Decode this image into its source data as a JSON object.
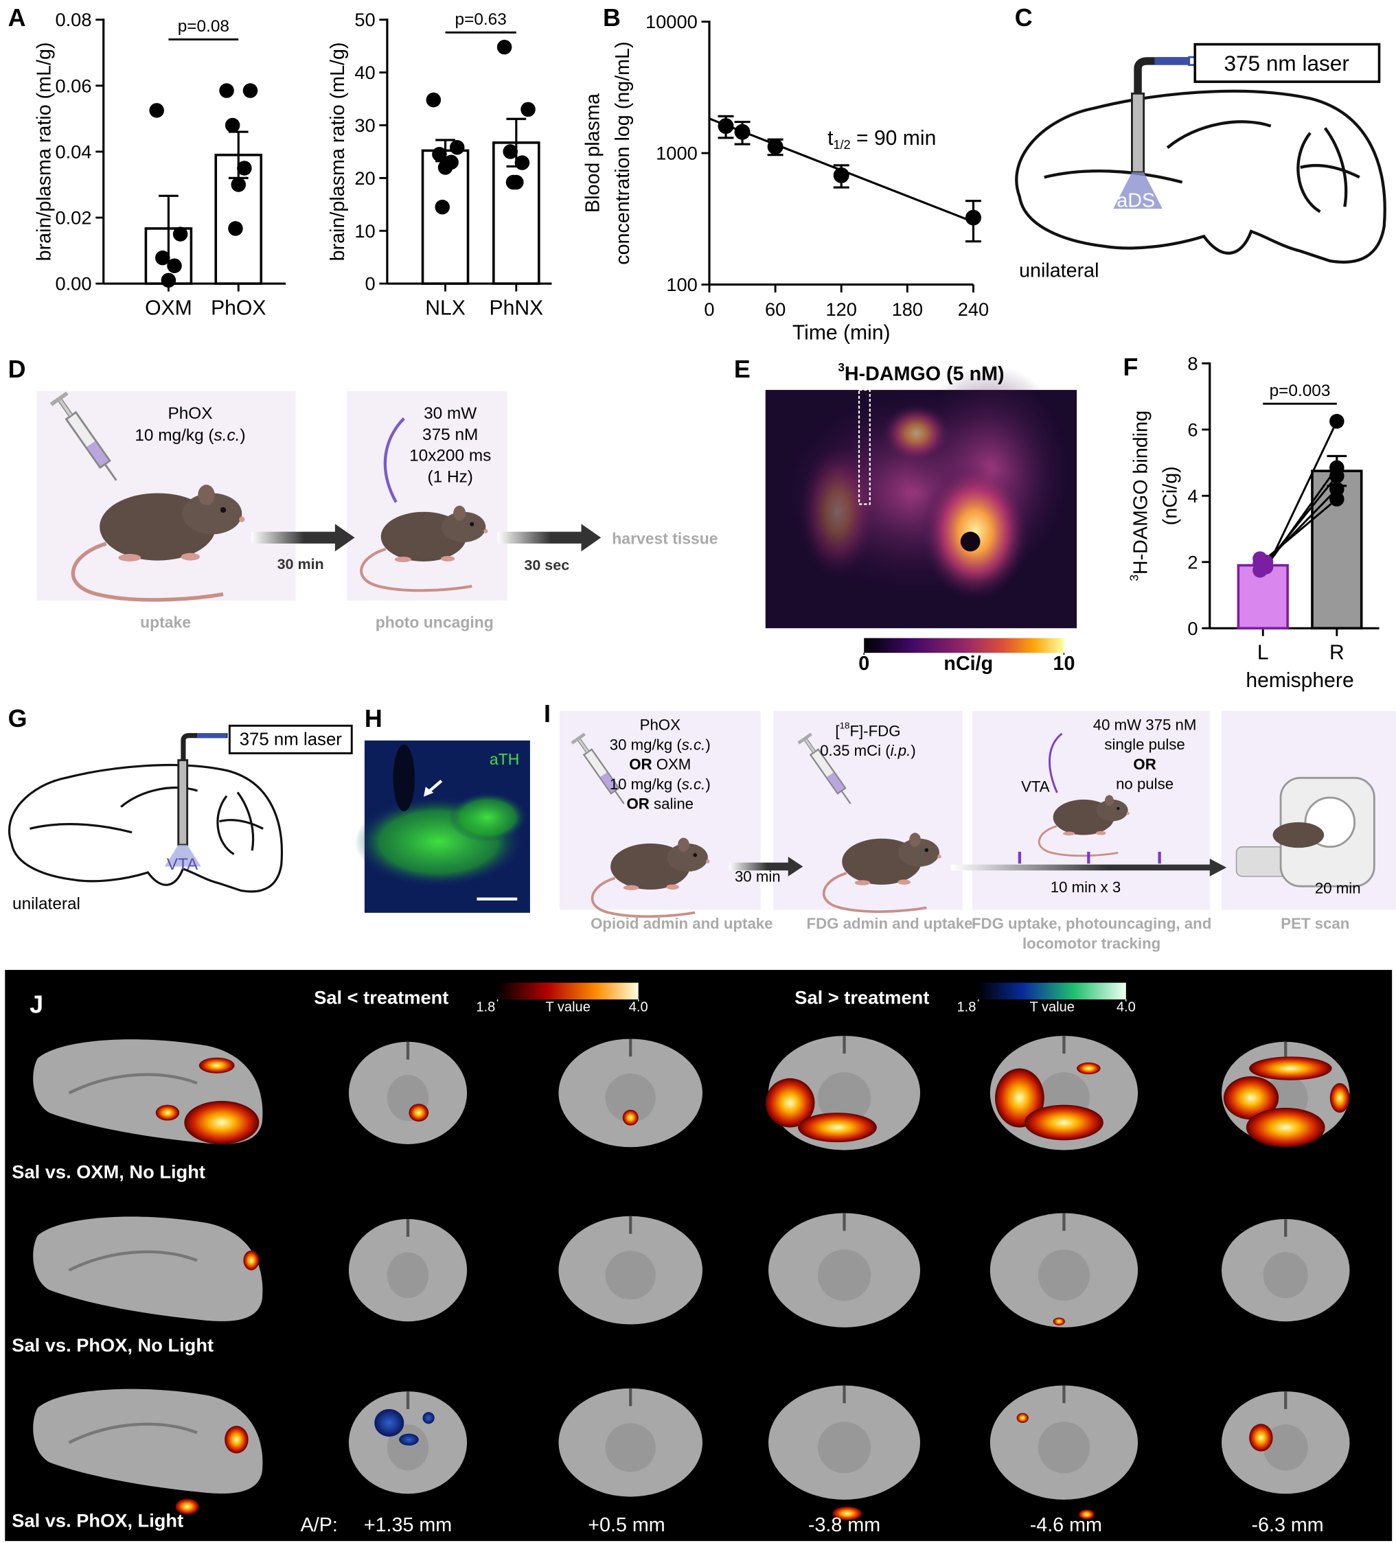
{
  "figure": {
    "panel_labels": [
      "A",
      "B",
      "C",
      "D",
      "E",
      "F",
      "G",
      "H",
      "I",
      "J"
    ]
  },
  "panel_c": {
    "laser": "375 nm laser",
    "region": "aDS",
    "side": "unilateral"
  },
  "panel_d": {
    "dose": [
      "PhOX",
      [
        "10 mg/kg (",
        {
          "text": "s.c.",
          "style": "italic"
        },
        ")"
      ]
    ],
    "light": [
      "30 mW",
      "375 nM",
      "10x200 ms",
      "(1 Hz)"
    ],
    "delay1": "30 min",
    "delay2": "30 sec",
    "end": "harvest tissue",
    "steps": [
      "uptake",
      "photo uncaging"
    ]
  },
  "panel_e": {
    "title": [
      {
        "text": "3",
        "style": "sup"
      },
      "H-DAMGO (5 nM)"
    ],
    "colorbar": {
      "ticks": [
        0,
        10
      ],
      "label": "nCi/g"
    }
  },
  "panel_g": {
    "laser": "375 nm laser",
    "region": "VTA",
    "side": "unilateral"
  },
  "panel_h": {
    "stain": "aTH"
  },
  "panel_i": {
    "steps": [
      {
        "lines": [
          "PhOX",
          [
            "30 mg/kg (",
            {
              "text": "s.c.",
              "style": "italic"
            },
            ")"
          ],
          [
            {
              "text": "OR",
              "style": "bold"
            },
            " OXM"
          ],
          [
            "10 mg/kg (",
            {
              "text": "s.c.",
              "style": "italic"
            },
            ")"
          ],
          [
            {
              "text": "OR",
              "style": "bold"
            },
            " saline"
          ]
        ],
        "caption": [
          "Opioid admin and uptake"
        ]
      },
      {
        "lines": [
          [
            "[",
            {
              "text": "18",
              "style": "sup"
            },
            "F]-FDG"
          ],
          [
            "0.35 mCi (",
            {
              "text": "i.p.",
              "style": "italic"
            },
            ")"
          ]
        ],
        "caption": [
          "FDG admin and uptake"
        ]
      },
      {
        "lines": [
          "40 mW 375 nM",
          "single pulse",
          [
            {
              "text": "OR",
              "style": "bold"
            }
          ],
          "no pulse"
        ],
        "caption": [
          "FDG uptake, photouncaging, and",
          "locomotor tracking"
        ]
      },
      {
        "lines": [],
        "caption": [
          "PET scan"
        ]
      }
    ],
    "delay": "30 min",
    "region": "VTA",
    "interval": "10 min x 3",
    "scan": "20 min"
  },
  "panel_j": {
    "increase": {
      "title": "Sal < treatment",
      "colorbar": {
        "ticks": [
          1.8,
          {
            "value": 4,
            "label": "4.0"
          }
        ],
        "label": "T value"
      }
    },
    "decrease": {
      "title": "Sal > treatment",
      "colorbar": {
        "ticks": [
          1.8,
          {
            "value": 4,
            "label": "4.0"
          }
        ],
        "label": "T value"
      }
    },
    "rows": [
      "Sal vs. OXM, No Light",
      "Sal vs. PhOX, No Light",
      "Sal vs. PhOX, Light"
    ],
    "ap_label": "A/P:",
    "ap": [
      "+1.35 mm",
      "+0.5 mm",
      "-3.8 mm",
      "-4.6 mm",
      "-6.3 mm"
    ]
  },
  "chart_data": [
    {
      "type": "bar",
      "ylabel": "brain/plasma ratio (mL/g)",
      "categories": [
        "OXM",
        "PhOX"
      ],
      "values": [
        0.0167,
        0.039
      ],
      "errors": [
        0.0099,
        0.007
      ],
      "points": [
        [
          0.0525,
          0.015,
          0.0078,
          0.0054,
          0.001
        ],
        [
          0.0585,
          0.0585,
          0.048,
          0.035,
          0.03,
          0.0167
        ]
      ],
      "color": "#ffffff",
      "edge_color": "#000000",
      "point_color": "#000000",
      "ylim": [
        0,
        0.08
      ],
      "yticks": [
        {
          "value": 0,
          "label": "0.00"
        },
        0.02,
        0.04,
        0.06,
        0.08
      ],
      "annotation": "p=0.08"
    },
    {
      "type": "bar",
      "ylabel": "brain/plasma ratio (mL/g)",
      "categories": [
        "NLX",
        "PhNX"
      ],
      "values": [
        25.2,
        26.7
      ],
      "errors": [
        2.0,
        4.5
      ],
      "points": [
        [
          34.8,
          25.8,
          24.5,
          23.0,
          22.0,
          14.5
        ],
        [
          44.8,
          33.0,
          25.0,
          22.9,
          19.2,
          19.2
        ]
      ],
      "color": "#ffffff",
      "edge_color": "#000000",
      "point_color": "#000000",
      "ylim": [
        0,
        50
      ],
      "yticks": [
        0,
        10,
        20,
        30,
        40,
        50
      ],
      "annotation": "p=0.63"
    },
    {
      "type": "line",
      "ylabel": [
        "Blood plasma",
        "concentration log (ng/mL)"
      ],
      "xlabel": "Time (min)",
      "x": [
        15,
        30,
        60,
        120,
        240
      ],
      "values": [
        1607,
        1449,
        1119,
        678,
        323
      ],
      "errors": [
        300,
        280,
        150,
        130,
        110
      ],
      "fit": {
        "x": [
          0,
          240
        ],
        "values": [
          1830,
          300
        ]
      },
      "color": "#000000",
      "ylog": true,
      "xlim": [
        0,
        240
      ],
      "xticks": [
        0,
        60,
        120,
        180,
        240
      ],
      "ylim": [
        100,
        10000
      ],
      "yticks": [
        100,
        1000,
        10000
      ],
      "annotation": [
        "t",
        {
          "text": "1/2",
          "style": "sub"
        },
        " = 90 min"
      ]
    },
    {
      "type": "bar",
      "ylabel": [
        [
          {
            "text": "3",
            "style": "sup"
          },
          "H-DAMGO binding"
        ],
        "(nCi/g)"
      ],
      "xlabel": "hemisphere",
      "categories": [
        "L",
        "R"
      ],
      "values": [
        1.9,
        4.75
      ],
      "errors": [
        0.1,
        0.45
      ],
      "points": [
        [
          1.75,
          1.85,
          1.95,
          2.0,
          2.1
        ],
        [
          6.25,
          4.85,
          4.6,
          4.2,
          3.9
        ]
      ],
      "paired": true,
      "colors": [
        "#d986ee",
        "#999999"
      ],
      "edge_colors": [
        "#7b1fa2",
        "#000000"
      ],
      "point_colors": [
        "#7b1fa2",
        "#000000"
      ],
      "ylim": [
        0,
        8
      ],
      "yticks": [
        0,
        2,
        4,
        6,
        8
      ],
      "annotation": "p=0.003"
    }
  ]
}
